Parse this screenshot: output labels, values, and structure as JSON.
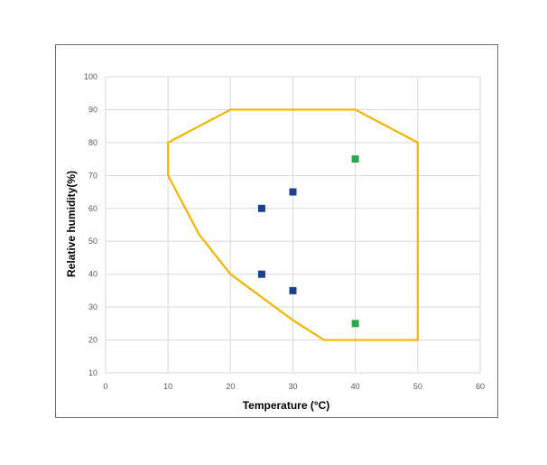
{
  "chart_data": {
    "type": "scatter",
    "title": "",
    "xlabel": "Temperature (°C)",
    "ylabel": "Relative humidity(%)",
    "xlim": [
      0,
      60
    ],
    "ylim": [
      10,
      100
    ],
    "x_ticks": [
      "0",
      "10",
      "20",
      "30",
      "40",
      "50",
      "60"
    ],
    "y_ticks": [
      "10",
      "20",
      "30",
      "40",
      "50",
      "60",
      "70",
      "80",
      "90",
      "100"
    ],
    "grid": true,
    "legend": "none",
    "series": [
      {
        "kind": "scatter",
        "marker": "square",
        "color": "#1f3f8f",
        "points": [
          {
            "x": 25,
            "y": 60
          },
          {
            "x": 30,
            "y": 65
          },
          {
            "x": 25,
            "y": 40
          },
          {
            "x": 30,
            "y": 35
          }
        ]
      },
      {
        "kind": "scatter",
        "marker": "square",
        "color": "#2aa84a",
        "points": [
          {
            "x": 40,
            "y": 75
          },
          {
            "x": 40,
            "y": 25
          }
        ]
      },
      {
        "kind": "polygon",
        "color": "#f5b400",
        "points": [
          {
            "x": 10,
            "y": 70
          },
          {
            "x": 10,
            "y": 80
          },
          {
            "x": 20,
            "y": 90
          },
          {
            "x": 40,
            "y": 90
          },
          {
            "x": 50,
            "y": 80
          },
          {
            "x": 50,
            "y": 20
          },
          {
            "x": 35,
            "y": 20
          },
          {
            "x": 30,
            "y": 26
          },
          {
            "x": 20,
            "y": 40
          },
          {
            "x": 15,
            "y": 52
          }
        ]
      }
    ]
  }
}
